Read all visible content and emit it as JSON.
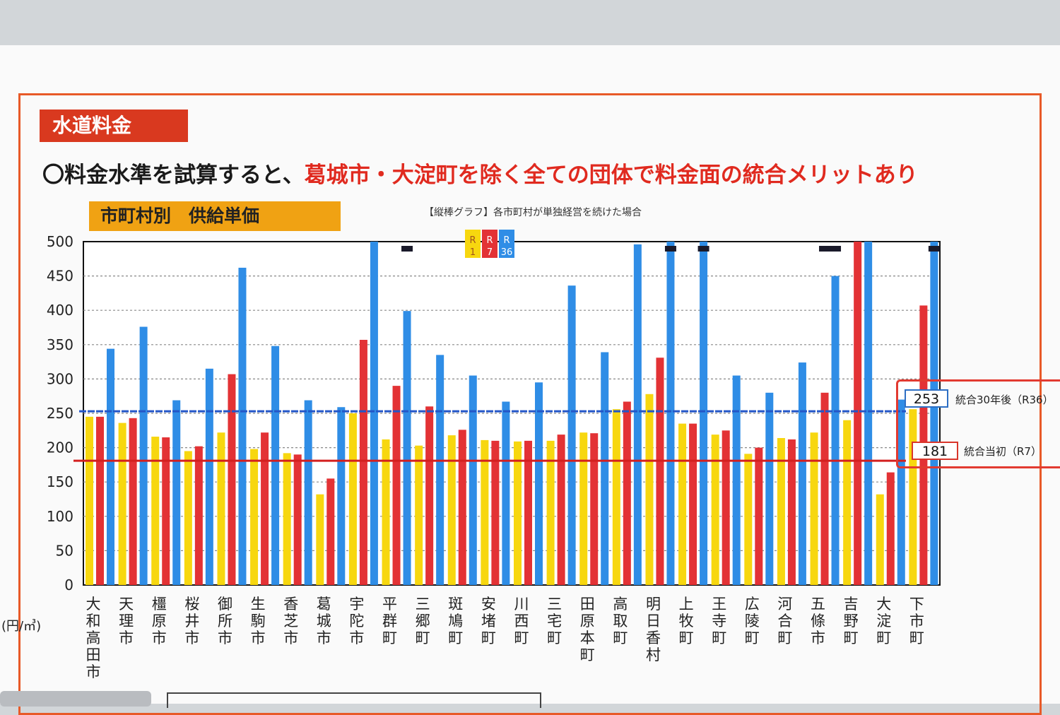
{
  "header": {
    "section_title": "水道料金",
    "headline_plain": "〇料金水準を試算すると、",
    "headline_red": "葛城市・大淀町を除く全ての団体で料金面の統合メリットあり",
    "subtitle": "市町村別　供給単価",
    "caption": "【縦棒グラフ】各市町村が単独経営を続けた場合"
  },
  "colors": {
    "R1": "#f7d70f",
    "R7": "#e33235",
    "R36": "#2f8de6",
    "frame": "#e85a28",
    "line_blue": "#2356c8",
    "line_red": "#d31f1f"
  },
  "chart_data": {
    "type": "bar",
    "ylim": [
      0,
      500
    ],
    "yticks": [
      0,
      50,
      100,
      150,
      200,
      250,
      300,
      350,
      400,
      450,
      500
    ],
    "ylabel": "(円/㎥)",
    "categories": [
      "大和高田市",
      "天理市",
      "橿原市",
      "桜井市",
      "御所市",
      "生駒市",
      "香芝市",
      "葛城市",
      "宇陀市",
      "平群町",
      "三郷町",
      "斑鳩町",
      "安堵町",
      "川西町",
      "三宅町",
      "田原本町",
      "高取町",
      "明日香村",
      "上牧町",
      "王寺町",
      "広陵町",
      "河合町",
      "五條市",
      "吉野町",
      "大淀町",
      "下市町"
    ],
    "series": [
      {
        "name": "R1",
        "values": [
          245,
          236,
          216,
          195,
          222,
          198,
          192,
          132,
          250,
          212,
          203,
          218,
          211,
          209,
          210,
          222,
          256,
          278,
          235,
          219,
          191,
          214,
          222,
          240,
          132,
          256
        ]
      },
      {
        "name": "R7",
        "values": [
          245,
          243,
          215,
          202,
          307,
          222,
          190,
          155,
          357,
          290,
          260,
          226,
          210,
          210,
          219,
          221,
          267,
          331,
          235,
          225,
          200,
          212,
          280,
          500,
          164,
          407
        ]
      },
      {
        "name": "R36",
        "values": [
          344,
          376,
          269,
          315,
          462,
          348,
          269,
          259,
          500,
          399,
          335,
          305,
          267,
          295,
          436,
          339,
          496,
          500,
          500,
          305,
          280,
          324,
          450,
          500,
          270,
          500
        ]
      }
    ],
    "legend": [
      "R1",
      "R7",
      "R36"
    ],
    "overflow_markers": [
      {
        "category": "平群町",
        "series": "R36"
      },
      {
        "category": "明日香村",
        "series": "R36"
      },
      {
        "category": "上牧町",
        "series": "R36"
      },
      {
        "category": "五條市",
        "series": "R7"
      },
      {
        "category": "五條市",
        "series": "R36"
      },
      {
        "category": "下市町",
        "series": "R36"
      }
    ],
    "reference_lines": [
      {
        "value": 253,
        "label": "統合30年後（R36）",
        "color": "#2356c8"
      },
      {
        "value": 181,
        "label": "統合当初（R7）",
        "color": "#d31f1f"
      }
    ],
    "grid": true
  }
}
